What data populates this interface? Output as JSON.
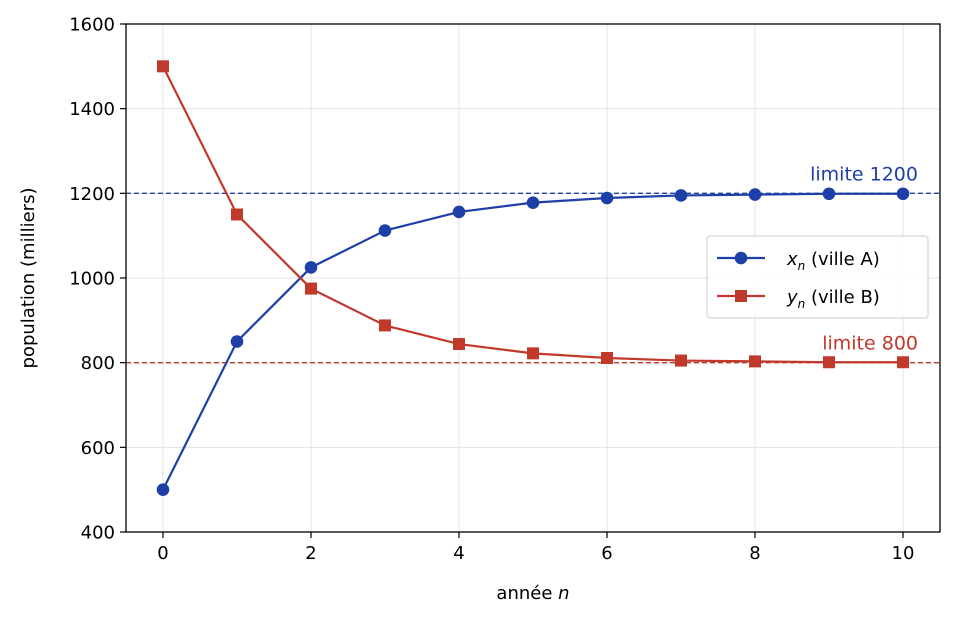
{
  "chart_data": {
    "type": "line",
    "x": [
      0,
      1,
      2,
      3,
      4,
      5,
      6,
      7,
      8,
      9,
      10
    ],
    "series": [
      {
        "name_var": "x",
        "name_sub": "n",
        "name_rest": " (ville A)",
        "color": "#1f3fa8",
        "marker": "circle",
        "values": [
          500,
          850,
          1025,
          1112,
          1156,
          1178,
          1189,
          1195,
          1197,
          1199,
          1199
        ]
      },
      {
        "name_var": "y",
        "name_sub": "n",
        "name_rest": " (ville B)",
        "color": "#c0392b",
        "marker": "square",
        "values": [
          1500,
          1150,
          975,
          888,
          844,
          822,
          811,
          805,
          803,
          801,
          801
        ]
      }
    ],
    "xlabel_text": "année ",
    "xlabel_var": "n",
    "ylabel": "population (milliers)",
    "xlim": [
      -0.5,
      10.5
    ],
    "ylim": [
      400,
      1600
    ],
    "xticks": [
      "0",
      "2",
      "4",
      "6",
      "8",
      "10"
    ],
    "yticks": [
      "400",
      "600",
      "800",
      "1000",
      "1200",
      "1400",
      "1600"
    ],
    "grid": true,
    "legend_position": "center-right",
    "reference_lines": [
      {
        "y": 1200,
        "label": "limite 1200",
        "color": "#1f3fa8"
      },
      {
        "y": 800,
        "label": "limite 800",
        "color": "#c0392b"
      }
    ]
  }
}
